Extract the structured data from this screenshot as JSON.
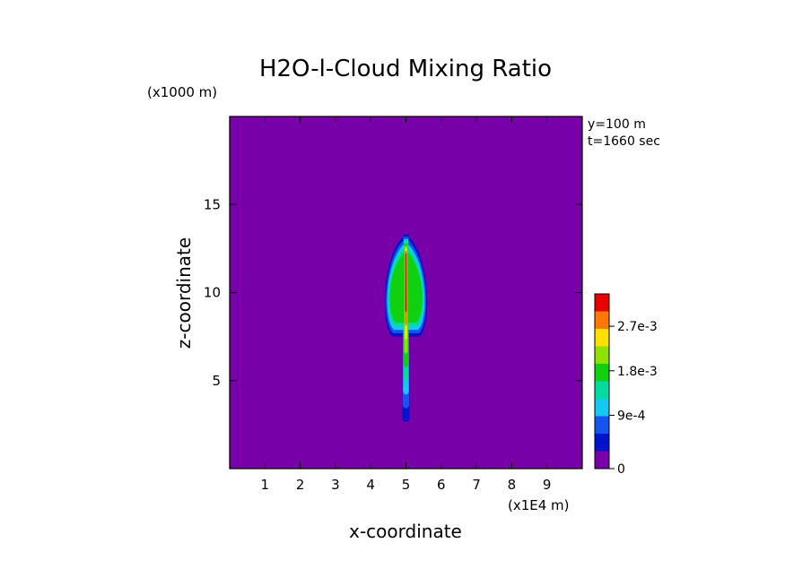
{
  "chart_data": {
    "type": "heatmap",
    "title": "H2O-l-Cloud Mixing Ratio",
    "xlabel": "x-coordinate",
    "ylabel": "z-coordinate",
    "x_unit": "(x1E4 m)",
    "y_unit": "(x1000 m)",
    "annotations": [
      "y=100 m",
      "t=1660 sec"
    ],
    "xlim": [
      0,
      10
    ],
    "ylim": [
      0,
      20
    ],
    "x_ticks": [
      1,
      2,
      3,
      4,
      5,
      6,
      7,
      8,
      9
    ],
    "y_ticks": [
      5,
      10,
      15
    ],
    "background_color": "#7800a8",
    "colorbar": {
      "levels": [
        0,
        0.0003,
        0.0006,
        0.0009,
        0.0012,
        0.0015,
        0.0018,
        0.0021,
        0.0024,
        0.0027,
        0.003
      ],
      "tick_labels": [
        {
          "value": 0,
          "label": "0"
        },
        {
          "value": 0.0009,
          "label": "9e-4"
        },
        {
          "value": 0.0018,
          "label": "1.8e-3"
        },
        {
          "value": 0.0027,
          "label": "2.7e-3"
        }
      ],
      "colors": [
        "#7800a8",
        "#0014cc",
        "#1455f0",
        "#14c8f0",
        "#00dca0",
        "#10d010",
        "#90e000",
        "#ffe000",
        "#ff7800",
        "#e80000"
      ]
    },
    "plume": {
      "center_x": 5.0,
      "stem_bottom_z": 2.8,
      "top_z": 13.3,
      "lobe_center_offset_x": 0.35,
      "lobe_bottom_z": 7.5,
      "lobe_top_z": 11.0,
      "max_value": 0.003
    }
  }
}
